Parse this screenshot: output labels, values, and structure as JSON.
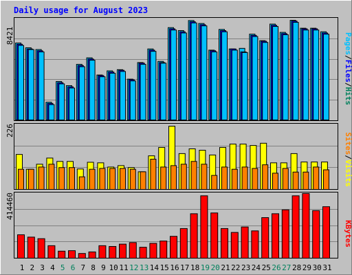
{
  "title": "Daily usage for August 2023",
  "colors": {
    "background": "#c0c0c0",
    "title": "#0000ff",
    "hits": "#00c0ff",
    "files": "#0000ff",
    "pages": "#00c0ff",
    "visits": "#ffff00",
    "sites": "#ff8000",
    "kbytes": "#ff0000",
    "weekday_label": "#000000",
    "weekend_label": "#00805c"
  },
  "chart_data": [
    {
      "type": "bar",
      "panel": "hits-files-pages",
      "y_axis_max_label": "8421",
      "ylim": [
        0,
        8421
      ],
      "legend": [
        "Pages",
        "/",
        "Files",
        "/",
        "Hits"
      ],
      "categories": [
        "1",
        "2",
        "3",
        "4",
        "5",
        "6",
        "7",
        "8",
        "9",
        "10",
        "11",
        "12",
        "13",
        "14",
        "15",
        "16",
        "17",
        "18",
        "19",
        "20",
        "21",
        "22",
        "23",
        "24",
        "25",
        "26",
        "27",
        "28",
        "29",
        "30",
        "31"
      ],
      "weekend_days": [
        "5",
        "6",
        "12",
        "13",
        "19",
        "20",
        "26",
        "27"
      ],
      "series": [
        {
          "name": "Hits",
          "values": [
            6500,
            6100,
            5950,
            1500,
            3250,
            2900,
            4700,
            5250,
            3800,
            4150,
            4250,
            3450,
            4850,
            6000,
            4950,
            7800,
            7550,
            8400,
            8150,
            5900,
            7650,
            6000,
            6050,
            7250,
            6700,
            8100,
            7400,
            8420,
            7750,
            7750,
            7450
          ]
        },
        {
          "name": "Files",
          "values": [
            6400,
            6000,
            5850,
            1400,
            3150,
            2800,
            4600,
            5150,
            3750,
            4050,
            4200,
            3400,
            4800,
            5900,
            4850,
            7700,
            7450,
            8300,
            8050,
            5850,
            7550,
            6000,
            5750,
            7150,
            6650,
            8000,
            7300,
            8350,
            7700,
            7700,
            7350
          ]
        },
        {
          "name": "Pages",
          "values": [
            6300,
            5950,
            5750,
            1300,
            3050,
            2700,
            4500,
            5050,
            3650,
            3950,
            4100,
            3300,
            4700,
            5800,
            4800,
            7600,
            7350,
            8200,
            7950,
            5750,
            7450,
            5900,
            5700,
            7050,
            6550,
            7900,
            7200,
            8250,
            7600,
            7600,
            7250
          ]
        }
      ]
    },
    {
      "type": "bar",
      "panel": "visits-sites",
      "y_axis_max_label": "226",
      "ylim": [
        0,
        226
      ],
      "legend": [
        "Sites",
        "/",
        "Visits"
      ],
      "categories": [
        "1",
        "2",
        "3",
        "4",
        "5",
        "6",
        "7",
        "8",
        "9",
        "10",
        "11",
        "12",
        "13",
        "14",
        "15",
        "16",
        "17",
        "18",
        "19",
        "20",
        "21",
        "22",
        "23",
        "24",
        "25",
        "26",
        "27",
        "28",
        "29",
        "30",
        "31"
      ],
      "series": [
        {
          "name": "Visits",
          "values": [
            125,
            72,
            90,
            112,
            100,
            100,
            73,
            97,
            95,
            80,
            85,
            78,
            63,
            120,
            150,
            226,
            128,
            145,
            140,
            123,
            150,
            162,
            162,
            157,
            165,
            95,
            95,
            128,
            98,
            98,
            98
          ]
        },
        {
          "name": "Sites",
          "values": [
            72,
            72,
            80,
            90,
            78,
            78,
            45,
            72,
            75,
            75,
            75,
            72,
            63,
            108,
            80,
            85,
            90,
            100,
            90,
            50,
            80,
            72,
            80,
            75,
            88,
            58,
            75,
            62,
            62,
            80,
            70
          ]
        }
      ]
    },
    {
      "type": "bar",
      "panel": "kbytes",
      "y_axis_max_label": "414460",
      "ylim": [
        0,
        414460
      ],
      "legend": [
        "KBytes"
      ],
      "categories": [
        "1",
        "2",
        "3",
        "4",
        "5",
        "6",
        "7",
        "8",
        "9",
        "10",
        "11",
        "12",
        "13",
        "14",
        "15",
        "16",
        "17",
        "18",
        "19",
        "20",
        "21",
        "22",
        "23",
        "24",
        "25",
        "26",
        "27",
        "28",
        "29",
        "30",
        "31"
      ],
      "series": [
        {
          "name": "KBytes",
          "values": [
            150000,
            135000,
            125000,
            80000,
            45000,
            48000,
            30000,
            40000,
            80000,
            75000,
            90000,
            100000,
            70000,
            95000,
            110000,
            140000,
            190000,
            285000,
            400000,
            290000,
            190000,
            165000,
            200000,
            175000,
            260000,
            285000,
            310000,
            400000,
            425000,
            305000,
            330000
          ]
        }
      ]
    }
  ]
}
